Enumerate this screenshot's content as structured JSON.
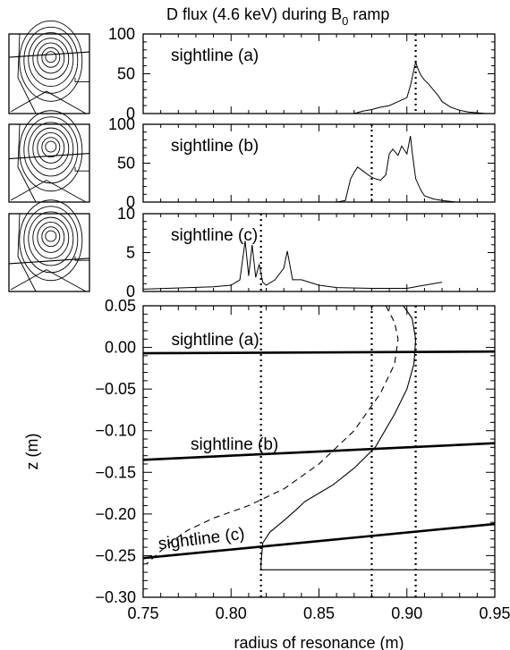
{
  "chart_data": {
    "type": "line",
    "title": "D flux (4.6 keV) during B",
    "title_subscript": "0",
    "title_suffix": "ramp",
    "top_panels": [
      {
        "label": "sightline (a)",
        "ylim": [
          0,
          100
        ],
        "yticks": [
          "100",
          "50",
          "0"
        ],
        "marker_x": 0.905,
        "series": {
          "x": [
            0.75,
            0.87,
            0.875,
            0.88,
            0.885,
            0.89,
            0.895,
            0.9,
            0.902,
            0.904,
            0.905,
            0.906,
            0.908,
            0.91,
            0.912,
            0.915,
            0.918,
            0.92,
            0.925,
            0.93,
            0.935,
            0.94,
            0.945
          ],
          "y": [
            0,
            0,
            3,
            5,
            8,
            10,
            15,
            20,
            35,
            55,
            65,
            58,
            48,
            42,
            38,
            30,
            22,
            15,
            8,
            4,
            2,
            1,
            0
          ]
        }
      },
      {
        "label": "sightline (b)",
        "ylim": [
          0,
          100
        ],
        "yticks": [
          "100",
          "50",
          "0"
        ],
        "marker_x": 0.88,
        "series": {
          "x": [
            0.86,
            0.865,
            0.868,
            0.87,
            0.872,
            0.875,
            0.878,
            0.88,
            0.882,
            0.885,
            0.888,
            0.89,
            0.892,
            0.895,
            0.897,
            0.9,
            0.902,
            0.903,
            0.905,
            0.908,
            0.91,
            0.915,
            0.92,
            0.928
          ],
          "y": [
            0,
            2,
            30,
            38,
            45,
            40,
            35,
            32,
            30,
            28,
            35,
            62,
            68,
            60,
            72,
            62,
            85,
            65,
            30,
            15,
            8,
            4,
            2,
            0
          ]
        }
      },
      {
        "label": "sightline (c)",
        "ylim": [
          0,
          10
        ],
        "yticks": [
          "10",
          "5",
          "0"
        ],
        "marker_x": 0.817,
        "series": {
          "x": [
            0.75,
            0.79,
            0.8,
            0.805,
            0.808,
            0.81,
            0.812,
            0.814,
            0.816,
            0.818,
            0.82,
            0.825,
            0.83,
            0.832,
            0.835,
            0.84,
            0.85,
            0.86,
            0.88,
            0.9,
            0.91,
            0.92
          ],
          "y": [
            0.3,
            0.6,
            0.8,
            1.5,
            6.5,
            2,
            6,
            1.8,
            3.5,
            1.2,
            0.8,
            1.5,
            3,
            5.2,
            1.5,
            1.5,
            0.8,
            0.5,
            0.4,
            0.4,
            0.8,
            1.2
          ]
        }
      }
    ],
    "bottom_panel": {
      "xlabel": "radius of resonance (m)",
      "ylabel": "z (m)",
      "xlim": [
        0.75,
        0.95
      ],
      "ylim": [
        -0.3,
        0.05
      ],
      "xticks": [
        0.75,
        0.8,
        0.85,
        0.9,
        0.95
      ],
      "xtick_labels": [
        "0.75",
        "0.80",
        "0.85",
        "0.90",
        "0.95"
      ],
      "yticks": [
        0.05,
        0.0,
        -0.05,
        -0.1,
        -0.15,
        -0.2,
        -0.25,
        -0.3
      ],
      "ytick_labels": [
        "0.05",
        "0.00",
        "−0.05",
        "−0.10",
        "−0.15",
        "−0.20",
        "−0.25",
        "−0.30"
      ],
      "vertical_markers": [
        0.817,
        0.88,
        0.905
      ],
      "sightlines": [
        {
          "label": "sightline (a)",
          "x": [
            0.75,
            0.95
          ],
          "y": [
            -0.007,
            -0.005
          ]
        },
        {
          "label": "sightline (b)",
          "x": [
            0.75,
            0.95
          ],
          "y": [
            -0.135,
            -0.115
          ]
        },
        {
          "label": "sightline (c)",
          "x": [
            0.75,
            0.95
          ],
          "y": [
            -0.253,
            -0.212
          ]
        }
      ],
      "resonance_solid": {
        "x": [
          0.898,
          0.903,
          0.905,
          0.904,
          0.9,
          0.893,
          0.882,
          0.87,
          0.858,
          0.85,
          0.842,
          0.837,
          0.83,
          0.822,
          0.818,
          0.817
        ],
        "y": [
          0.05,
          0.035,
          0.01,
          -0.02,
          -0.05,
          -0.08,
          -0.12,
          -0.145,
          -0.165,
          -0.175,
          -0.185,
          -0.195,
          -0.208,
          -0.222,
          -0.235,
          -0.26
        ]
      },
      "resonance_solid_tail": {
        "x": [
          0.817,
          0.817,
          0.95
        ],
        "y": [
          -0.26,
          -0.267,
          -0.267
        ]
      },
      "resonance_dashed": {
        "x": [
          0.888,
          0.893,
          0.895,
          0.893,
          0.885,
          0.87,
          0.85,
          0.83,
          0.81,
          0.79,
          0.775,
          0.765,
          0.757,
          0.752
        ],
        "y": [
          0.05,
          0.03,
          0.01,
          -0.02,
          -0.055,
          -0.1,
          -0.14,
          -0.17,
          -0.19,
          -0.205,
          -0.22,
          -0.235,
          -0.25,
          -0.26
        ]
      }
    }
  }
}
